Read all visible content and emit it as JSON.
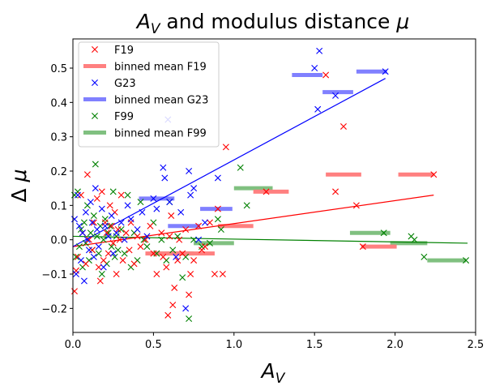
{
  "chart_data": {
    "type": "scatter",
    "title_main": "A",
    "title_sub": "V",
    "title_rest": " and modulus distance ",
    "title_mu": "μ",
    "xlabel_main": "A",
    "xlabel_sub": "V",
    "ylabel_delta": "Δ",
    "ylabel_mu": "μ",
    "xlim": [
      0,
      2.5
    ],
    "ylim": [
      -0.27,
      0.585
    ],
    "x_ticks": [
      0.0,
      0.5,
      1.0,
      1.5,
      2.0,
      2.5
    ],
    "x_tick_labels": [
      "0.0",
      "0.5",
      "1.0",
      "1.5",
      "2.0",
      "2.5"
    ],
    "y_ticks": [
      -0.2,
      -0.1,
      0.0,
      0.1,
      0.2,
      0.3,
      0.4,
      0.5
    ],
    "y_tick_labels": [
      "−0.2",
      "−0.1",
      "0.0",
      "0.1",
      "0.2",
      "0.3",
      "0.4",
      "0.5"
    ],
    "grid": false,
    "legend_position": "top-left",
    "legend": [
      {
        "label": "F19",
        "kind": "marker",
        "color": "#ff0000"
      },
      {
        "label": "binned mean F19",
        "kind": "bar",
        "color": "#ff8080"
      },
      {
        "label": "G23",
        "kind": "marker",
        "color": "#0000ff"
      },
      {
        "label": "binned mean G23",
        "kind": "bar",
        "color": "#8080ff"
      },
      {
        "label": "F99",
        "kind": "marker",
        "color": "#008000"
      },
      {
        "label": "binned mean F99",
        "kind": "bar",
        "color": "#80c080"
      }
    ],
    "series": [
      {
        "name": "F19",
        "color": "#ff0000",
        "points": [
          [
            0.01,
            -0.15
          ],
          [
            0.02,
            -0.09
          ],
          [
            0.03,
            -0.05
          ],
          [
            0.05,
            0.13
          ],
          [
            0.06,
            0.02
          ],
          [
            0.08,
            -0.07
          ],
          [
            0.09,
            0.19
          ],
          [
            0.1,
            0.0
          ],
          [
            0.12,
            -0.03
          ],
          [
            0.13,
            0.05
          ],
          [
            0.15,
            0.12
          ],
          [
            0.16,
            -0.08
          ],
          [
            0.17,
            -0.12
          ],
          [
            0.18,
            0.14
          ],
          [
            0.19,
            -0.06
          ],
          [
            0.2,
            0.05
          ],
          [
            0.21,
            0.02
          ],
          [
            0.22,
            -0.04
          ],
          [
            0.23,
            0.1
          ],
          [
            0.24,
            0.04
          ],
          [
            0.25,
            -0.01
          ],
          [
            0.26,
            0.08
          ],
          [
            0.27,
            -0.1
          ],
          [
            0.28,
            0.03
          ],
          [
            0.29,
            0.0
          ],
          [
            0.3,
            0.13
          ],
          [
            0.31,
            -0.06
          ],
          [
            0.33,
            0.02
          ],
          [
            0.35,
            -0.03
          ],
          [
            0.36,
            0.05
          ],
          [
            0.38,
            -0.07
          ],
          [
            0.4,
            0.01
          ],
          [
            0.42,
            -0.02
          ],
          [
            0.45,
            0.0
          ],
          [
            0.48,
            0.04
          ],
          [
            0.5,
            -0.04
          ],
          [
            0.52,
            -0.1
          ],
          [
            0.55,
            0.02
          ],
          [
            0.56,
            -0.05
          ],
          [
            0.58,
            -0.08
          ],
          [
            0.59,
            -0.22
          ],
          [
            0.6,
            0.01
          ],
          [
            0.61,
            0.07
          ],
          [
            0.62,
            -0.19
          ],
          [
            0.63,
            -0.14
          ],
          [
            0.65,
            -0.06
          ],
          [
            0.66,
            0.0
          ],
          [
            0.68,
            -0.04
          ],
          [
            0.7,
            0.03
          ],
          [
            0.72,
            -0.16
          ],
          [
            0.73,
            -0.1
          ],
          [
            0.75,
            -0.06
          ],
          [
            0.78,
            0.04
          ],
          [
            0.8,
            -0.03
          ],
          [
            0.82,
            -0.02
          ],
          [
            0.85,
            0.05
          ],
          [
            0.88,
            -0.1
          ],
          [
            0.9,
            0.09
          ],
          [
            0.93,
            -0.1
          ],
          [
            0.95,
            0.27
          ],
          [
            1.2,
            0.14
          ],
          [
            1.57,
            0.48
          ],
          [
            1.63,
            0.14
          ],
          [
            1.68,
            0.33
          ],
          [
            1.76,
            0.1
          ],
          [
            1.8,
            -0.02
          ],
          [
            2.24,
            0.19
          ]
        ],
        "binned_means": [
          {
            "x_range": [
              0.45,
              0.88
            ],
            "y": -0.04
          },
          {
            "x_range": [
              0.9,
              1.12
            ],
            "y": 0.04
          },
          {
            "x_range": [
              1.12,
              1.34
            ],
            "y": 0.14
          },
          {
            "x_range": [
              1.57,
              1.79
            ],
            "y": 0.19
          },
          {
            "x_range": [
              1.79,
              2.01
            ],
            "y": -0.02
          },
          {
            "x_range": [
              2.02,
              2.24
            ],
            "y": 0.19
          }
        ],
        "trend": {
          "x": [
            0.0,
            2.24
          ],
          "y": [
            -0.02,
            0.13
          ]
        }
      },
      {
        "name": "G23",
        "color": "#0000ff",
        "points": [
          [
            0.01,
            0.06
          ],
          [
            0.02,
            -0.1
          ],
          [
            0.03,
            0.13
          ],
          [
            0.04,
            0.04
          ],
          [
            0.05,
            -0.06
          ],
          [
            0.06,
            0.02
          ],
          [
            0.07,
            -0.12
          ],
          [
            0.08,
            0.08
          ],
          [
            0.09,
            0.0
          ],
          [
            0.1,
            -0.03
          ],
          [
            0.11,
            0.11
          ],
          [
            0.12,
            0.05
          ],
          [
            0.13,
            -0.05
          ],
          [
            0.14,
            0.15
          ],
          [
            0.15,
            0.03
          ],
          [
            0.16,
            -0.02
          ],
          [
            0.18,
            0.09
          ],
          [
            0.19,
            -0.08
          ],
          [
            0.2,
            0.04
          ],
          [
            0.22,
            0.01
          ],
          [
            0.24,
            0.07
          ],
          [
            0.25,
            -0.04
          ],
          [
            0.27,
            0.02
          ],
          [
            0.3,
            0.05
          ],
          [
            0.32,
            0.0
          ],
          [
            0.34,
            0.1
          ],
          [
            0.36,
            0.06
          ],
          [
            0.4,
            0.03
          ],
          [
            0.43,
            0.08
          ],
          [
            0.46,
            0.01
          ],
          [
            0.5,
            0.12
          ],
          [
            0.52,
            0.09
          ],
          [
            0.56,
            0.21
          ],
          [
            0.57,
            0.18
          ],
          [
            0.59,
            0.35
          ],
          [
            0.6,
            0.11
          ],
          [
            0.64,
            -0.05
          ],
          [
            0.67,
            0.08
          ],
          [
            0.7,
            -0.2
          ],
          [
            0.72,
            0.2
          ],
          [
            0.73,
            0.13
          ],
          [
            0.75,
            0.15
          ],
          [
            0.78,
            0.0
          ],
          [
            0.82,
            0.05
          ],
          [
            0.9,
            0.18
          ],
          [
            1.5,
            0.5
          ],
          [
            1.52,
            0.38
          ],
          [
            1.53,
            0.55
          ],
          [
            1.63,
            0.42
          ],
          [
            1.94,
            0.49
          ]
        ],
        "binned_means": [
          {
            "x_range": [
              0.41,
              0.63
            ],
            "y": 0.12
          },
          {
            "x_range": [
              0.59,
              0.79
            ],
            "y": 0.04
          },
          {
            "x_range": [
              0.79,
              0.99
            ],
            "y": 0.09
          },
          {
            "x_range": [
              1.36,
              1.55
            ],
            "y": 0.48
          },
          {
            "x_range": [
              1.55,
              1.74
            ],
            "y": 0.43
          },
          {
            "x_range": [
              1.76,
              1.95
            ],
            "y": 0.49
          }
        ],
        "trend": {
          "x": [
            0.0,
            1.94
          ],
          "y": [
            -0.02,
            0.47
          ]
        }
      },
      {
        "name": "F99",
        "color": "#008000",
        "points": [
          [
            0.01,
            0.13
          ],
          [
            0.02,
            -0.05
          ],
          [
            0.03,
            0.14
          ],
          [
            0.04,
            -0.02
          ],
          [
            0.05,
            0.03
          ],
          [
            0.06,
            -0.08
          ],
          [
            0.07,
            0.05
          ],
          [
            0.08,
            -0.01
          ],
          [
            0.09,
            0.1
          ],
          [
            0.1,
            -0.06
          ],
          [
            0.11,
            0.02
          ],
          [
            0.12,
            -0.03
          ],
          [
            0.13,
            0.07
          ],
          [
            0.14,
            0.22
          ],
          [
            0.15,
            0.01
          ],
          [
            0.16,
            -0.04
          ],
          [
            0.17,
            0.04
          ],
          [
            0.18,
            -0.1
          ],
          [
            0.19,
            0.0
          ],
          [
            0.2,
            0.06
          ],
          [
            0.21,
            -0.07
          ],
          [
            0.22,
            0.02
          ],
          [
            0.23,
            0.04
          ],
          [
            0.24,
            -0.02
          ],
          [
            0.25,
            0.14
          ],
          [
            0.26,
            -0.05
          ],
          [
            0.27,
            0.01
          ],
          [
            0.28,
            -0.03
          ],
          [
            0.3,
            0.03
          ],
          [
            0.32,
            -0.04
          ],
          [
            0.34,
            0.13
          ],
          [
            0.36,
            -0.08
          ],
          [
            0.38,
            0.02
          ],
          [
            0.4,
            -0.06
          ],
          [
            0.42,
            0.11
          ],
          [
            0.44,
            0.0
          ],
          [
            0.46,
            -0.02
          ],
          [
            0.5,
            0.05
          ],
          [
            0.52,
            -0.04
          ],
          [
            0.55,
            0.0
          ],
          [
            0.58,
            -0.06
          ],
          [
            0.6,
            0.11
          ],
          [
            0.62,
            -0.03
          ],
          [
            0.65,
            0.01
          ],
          [
            0.68,
            -0.11
          ],
          [
            0.7,
            -0.05
          ],
          [
            0.72,
            -0.23
          ],
          [
            0.75,
            0.0
          ],
          [
            0.8,
            -0.02
          ],
          [
            0.85,
            -0.01
          ],
          [
            0.9,
            0.06
          ],
          [
            0.92,
            0.03
          ],
          [
            1.04,
            0.21
          ],
          [
            1.08,
            0.1
          ],
          [
            1.93,
            0.02
          ],
          [
            2.1,
            0.01
          ],
          [
            2.12,
            0.0
          ],
          [
            2.18,
            -0.05
          ],
          [
            2.44,
            -0.06
          ]
        ],
        "binned_means": [
          {
            "x_range": [
              0.5,
              0.75
            ],
            "y": -0.04
          },
          {
            "x_range": [
              0.75,
              1.0
            ],
            "y": -0.01
          },
          {
            "x_range": [
              1.0,
              1.24
            ],
            "y": 0.15
          },
          {
            "x_range": [
              1.72,
              1.97
            ],
            "y": 0.02
          },
          {
            "x_range": [
              1.97,
              2.2
            ],
            "y": -0.01
          },
          {
            "x_range": [
              2.2,
              2.44
            ],
            "y": -0.06
          }
        ],
        "trend": {
          "x": [
            0.0,
            2.45
          ],
          "y": [
            0.01,
            -0.01
          ]
        }
      }
    ]
  }
}
